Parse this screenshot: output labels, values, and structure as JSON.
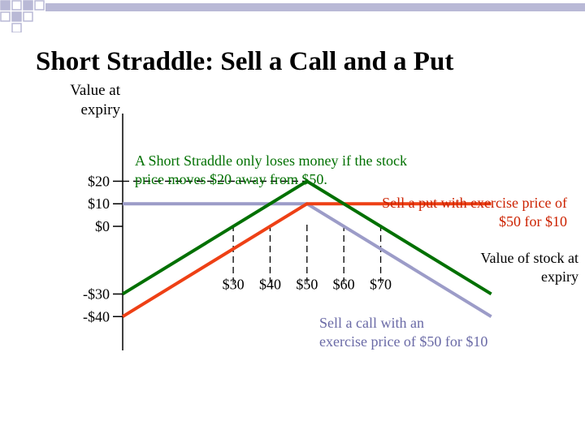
{
  "title": "Short Straddle: Sell a Call and a Put",
  "ylabel_lines": [
    "Value at",
    "expiry"
  ],
  "xlabel_lines": [
    "Value of stock at",
    "expiry"
  ],
  "annotations": {
    "main": [
      "A Short Straddle only loses money if the stock",
      "price moves  $20 away from $50."
    ],
    "put": [
      "Sell a put with exercise price of",
      "$50 for $10"
    ],
    "call": [
      "Sell a call with an",
      "exercise price of $50 for $10"
    ]
  },
  "colors": {
    "straddle": "#007000",
    "put": "#ee4015",
    "call": "#9c9cc8",
    "main_text": "#007000",
    "put_text": "#cc2200",
    "call_text": "#6a6aa6",
    "deco": "#b9b9d6",
    "guide": "#000000"
  },
  "chart_data": {
    "type": "line",
    "title": "Short Straddle: Sell a Call and a Put",
    "xlabel": "Value of stock at expiry",
    "ylabel": "Value at expiry",
    "x_ticks": [
      {
        "value": 30,
        "label": "$30"
      },
      {
        "value": 40,
        "label": "$40"
      },
      {
        "value": 50,
        "label": "$50"
      },
      {
        "value": 60,
        "label": "$60"
      },
      {
        "value": 70,
        "label": "$70"
      }
    ],
    "y_ticks": [
      {
        "value": 20,
        "label": "$20"
      },
      {
        "value": 10,
        "label": "$10"
      },
      {
        "value": 0,
        "label": "$0"
      },
      {
        "value": -30,
        "label": "-$30"
      },
      {
        "value": -40,
        "label": "-$40"
      }
    ],
    "xlim": [
      0,
      110
    ],
    "ylim": [
      -55,
      50
    ],
    "series": [
      {
        "key": "straddle",
        "x": [
          0,
          50,
          100
        ],
        "y": [
          -30,
          20,
          -30
        ]
      },
      {
        "key": "put",
        "x": [
          0,
          50,
          100
        ],
        "y": [
          -40,
          10,
          10
        ]
      },
      {
        "key": "call",
        "x": [
          0,
          50,
          100
        ],
        "y": [
          10,
          10,
          -40
        ]
      }
    ],
    "guides": {
      "x": [
        30,
        40,
        50,
        60,
        70
      ],
      "y": [
        20
      ]
    }
  }
}
